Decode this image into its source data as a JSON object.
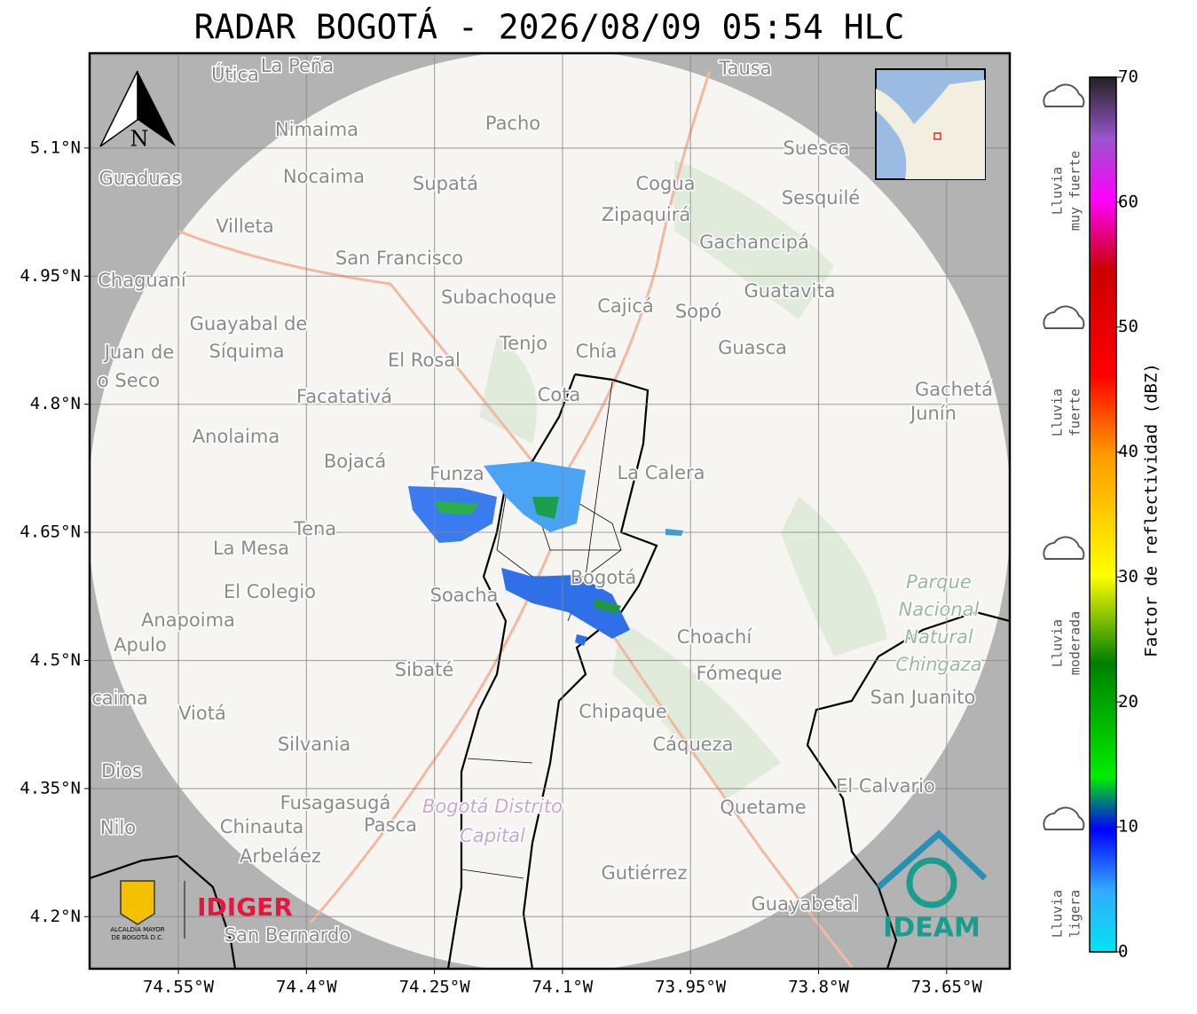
{
  "title": "RADAR BOGOTÁ - 2026/08/09 05:54 HLC",
  "map": {
    "xlim": [
      -74.654,
      -73.576
    ],
    "ylim": [
      4.139,
      5.211
    ],
    "xticks": [
      {
        "value": -74.55,
        "label": "74.55°W"
      },
      {
        "value": -74.4,
        "label": "74.4°W"
      },
      {
        "value": -74.25,
        "label": "74.25°W"
      },
      {
        "value": -74.1,
        "label": "74.1°W"
      },
      {
        "value": -73.95,
        "label": "73.95°W"
      },
      {
        "value": -73.8,
        "label": "73.8°W"
      },
      {
        "value": -73.65,
        "label": "73.65°W"
      }
    ],
    "yticks": [
      {
        "value": 5.1,
        "label": "5.1°N"
      },
      {
        "value": 4.95,
        "label": "4.95°N"
      },
      {
        "value": 4.8,
        "label": "4.8°N"
      },
      {
        "value": 4.65,
        "label": "4.65°N"
      },
      {
        "value": 4.5,
        "label": "4.5°N"
      },
      {
        "value": 4.35,
        "label": "4.35°N"
      },
      {
        "value": 4.2,
        "label": "4.2°N"
      }
    ],
    "north": "N",
    "places": [
      "Útica",
      "La Peña",
      "Tausa",
      "Pacho",
      "Nimaima",
      "Guaduas",
      "Nocaima",
      "Supatá",
      "Cogua",
      "Suesca",
      "Sesquilé",
      "Zipaquirá",
      "Villeta",
      "Gachancipá",
      "San Francisco",
      "Chaguaní",
      "Guatavita",
      "Subachoque",
      "Cajicá",
      "Sopó",
      "Guayabal de",
      "Síquima",
      "Tenjo",
      "Chía",
      "Guasca",
      "Juan de",
      "o Seco",
      "El Rosal",
      "Cota",
      "Gachetá",
      "Junín",
      "Facatativá",
      "Anolaima",
      "Bojacá",
      "Funza",
      "La Calera",
      "Tena",
      "La Mesa",
      "Soacha",
      "Bogotá",
      "El Colegio",
      "Anapoima",
      "Apulo",
      "Choachí",
      "Sibaté",
      "Fómeque",
      "San Juanito",
      "caima",
      "Viotá",
      "Chipaque",
      "Silvania",
      "Cáqueza",
      "Dios",
      "El Calvario",
      "Fusagasugá",
      "Quetame",
      "Nilo",
      "Chinauta",
      "Pasca",
      "Arbeláez",
      "Gutiérrez",
      "Guayabetal",
      "San Bernardo"
    ],
    "park": [
      "Parque",
      "Nacional",
      "Natural",
      "Chingaza"
    ],
    "district": [
      "Bogotá Distrito",
      "Capital"
    ],
    "logos": {
      "alcaldia": [
        "ALCALDÍA MAYOR",
        "DE BOGOTÁ D.C."
      ],
      "idiger": "IDIGER",
      "ideam": "IDEAM"
    }
  },
  "colorbar": {
    "label": "Factor de reflectividad (dBZ)",
    "lim": [
      0,
      70
    ],
    "ticks": [
      0,
      10,
      20,
      30,
      40,
      50,
      60,
      70
    ],
    "categories": [
      {
        "lines": [
          "Lluvia",
          "muy fuerte"
        ]
      },
      {
        "lines": [
          "Lluvia",
          "fuerte"
        ]
      },
      {
        "lines": [
          "Lluvia",
          "moderada"
        ]
      },
      {
        "lines": [
          "Lluvia",
          "ligera"
        ]
      }
    ]
  }
}
